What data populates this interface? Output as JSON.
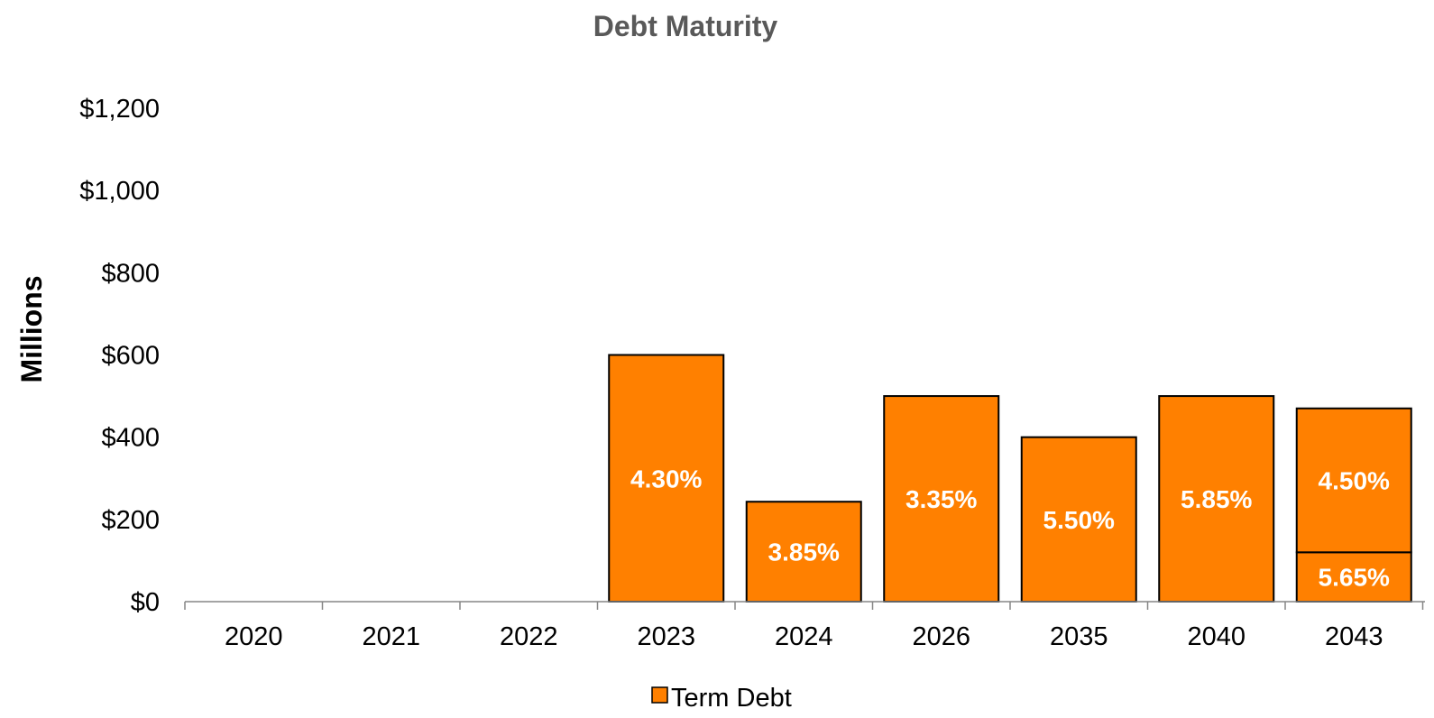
{
  "chart_data": {
    "type": "bar",
    "stacked": true,
    "title": "Debt Maturity",
    "ylabel": "Millions",
    "xlabel": "",
    "ylim": [
      0,
      1200
    ],
    "yticks": [
      0,
      200,
      400,
      600,
      800,
      1000,
      1200
    ],
    "ytick_labels": [
      "$0",
      "$200",
      "$400",
      "$600",
      "$800",
      "$1,000",
      "$1,200"
    ],
    "categories": [
      "2020",
      "2021",
      "2022",
      "2023",
      "2024",
      "2026",
      "2035",
      "2040",
      "2043"
    ],
    "grid": false,
    "legend": {
      "position": "bottom",
      "entries": [
        "Term Debt"
      ]
    },
    "colors": {
      "bar": "#FF8000",
      "edge": "#000000"
    },
    "series": [
      {
        "name": "Term Debt",
        "values": [
          0,
          0,
          0,
          600,
          243,
          500,
          400,
          500,
          120
        ],
        "labels": [
          "",
          "",
          "",
          "4.30%",
          "3.85%",
          "3.35%",
          "5.50%",
          "5.85%",
          "5.65%"
        ]
      },
      {
        "name": "Term Debt",
        "values": [
          0,
          0,
          0,
          0,
          0,
          0,
          0,
          0,
          350
        ],
        "labels": [
          "",
          "",
          "",
          "",
          "",
          "",
          "",
          "",
          "4.50%"
        ]
      }
    ]
  }
}
